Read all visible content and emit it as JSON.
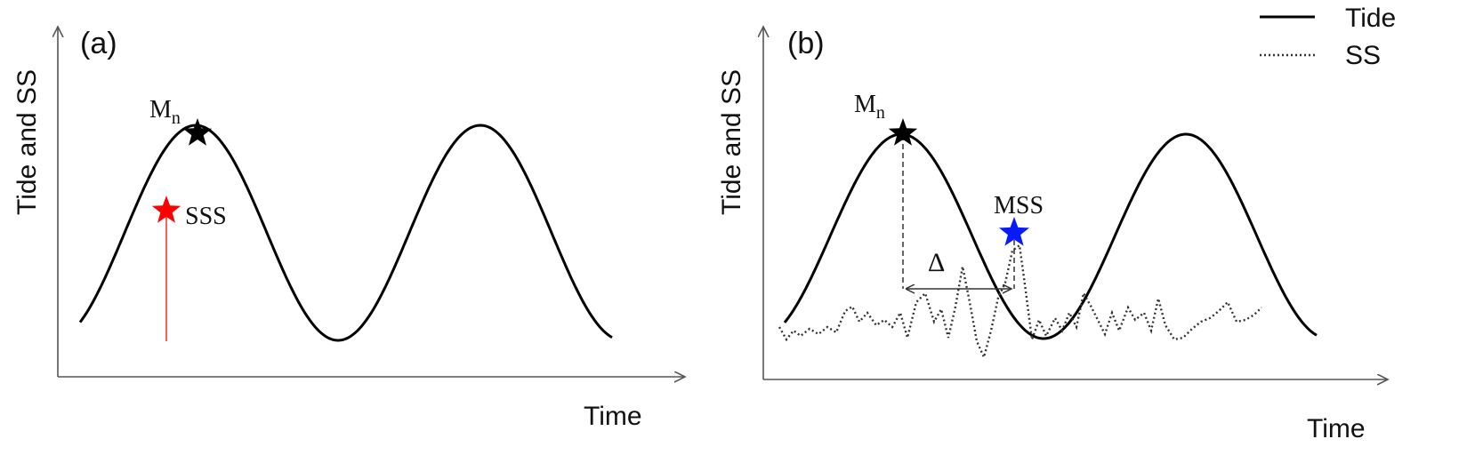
{
  "panel_a": {
    "label": "(a)",
    "ylabel": "Tide and SS",
    "xlabel": "Time",
    "peak_label": "M",
    "peak_sub": "n",
    "sss_label": "SSS",
    "colors": {
      "peak_star": "#000000",
      "sss_star": "#ff0000",
      "sss_line": "#ff3333"
    }
  },
  "panel_b": {
    "label": "(b)",
    "ylabel": "Tide and SS",
    "xlabel": "Time",
    "peak_label": "M",
    "peak_sub": "n",
    "mss_label": "MSS",
    "delta_label": "Δ",
    "colors": {
      "peak_star": "#000000",
      "mss_star": "#0a1aff"
    }
  },
  "legend": {
    "items": [
      {
        "label": "Tide",
        "style": "solid"
      },
      {
        "label": "SS",
        "style": "dotted"
      }
    ]
  }
}
